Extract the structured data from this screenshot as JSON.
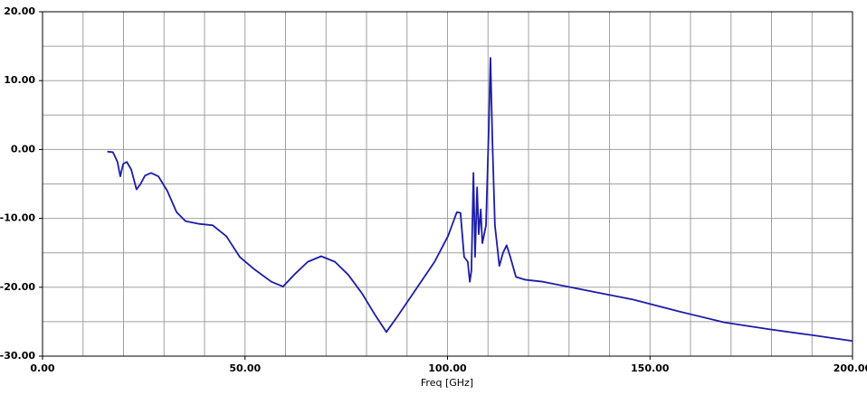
{
  "chart_data": {
    "type": "line",
    "x_label": "Freq [GHz]",
    "xlim": [
      0,
      200
    ],
    "ylim": [
      -30,
      20
    ],
    "xticks": [
      {
        "value": 0,
        "label": "0.00"
      },
      {
        "value": 50,
        "label": "50.00"
      },
      {
        "value": 100,
        "label": "100.00"
      },
      {
        "value": 150,
        "label": "150.00"
      },
      {
        "value": 200,
        "label": "200.00"
      }
    ],
    "yticks": [
      {
        "value": -30,
        "label": "-30.00"
      },
      {
        "value": -20,
        "label": "-20.00"
      },
      {
        "value": -10,
        "label": "-10.00"
      },
      {
        "value": 0,
        "label": "0.00"
      },
      {
        "value": 10,
        "label": "10.00"
      },
      {
        "value": 20,
        "label": "20.00"
      }
    ],
    "x_minor_grid": [
      10,
      20,
      30,
      40,
      60,
      70,
      80,
      90,
      110,
      120,
      130,
      140,
      160,
      170,
      180,
      190
    ],
    "y_minor_grid": [
      -25,
      -15,
      -5,
      5,
      15
    ],
    "grid": true,
    "series": [
      {
        "color": "#1c1ca8",
        "x": [
          16,
          17.4,
          18.5,
          19.2,
          19.9,
          20.8,
          21.9,
          23.2,
          24.1,
          25.3,
          26.8,
          28.6,
          30.8,
          33.1,
          35.3,
          38.7,
          42,
          45.4,
          48.7,
          52.1,
          56.5,
          59.4,
          62.1,
          65.5,
          68.8,
          72.2,
          75.5,
          78.9,
          82.2,
          84.9,
          87.8,
          92.3,
          96.8,
          100.1,
          102.3,
          103.2,
          104.1,
          105,
          105.5,
          105.9,
          106.4,
          106.8,
          107.3,
          107.7,
          108.2,
          108.6,
          109.5,
          110.2,
          110.6,
          111.1,
          111.7,
          112.8,
          113.7,
          114.6,
          115.5,
          116.9,
          119.1,
          123.6,
          134.7,
          145.9,
          157.1,
          168.3,
          179.4,
          190.6,
          200
        ],
        "values": [
          -0.3,
          -0.4,
          -1.8,
          -3.9,
          -2.1,
          -1.8,
          -2.9,
          -5.8,
          -5.1,
          -3.8,
          -3.4,
          -3.9,
          -6,
          -9.1,
          -10.4,
          -10.8,
          -11,
          -12.6,
          -15.6,
          -17.3,
          -19.2,
          -19.9,
          -18.2,
          -16.3,
          -15.5,
          -16.3,
          -18.2,
          -20.9,
          -24.1,
          -26.5,
          -24.1,
          -20.2,
          -16.3,
          -12.6,
          -9.1,
          -9.2,
          -15.6,
          -16.3,
          -19.2,
          -17.6,
          -3.4,
          -15.6,
          -5.5,
          -12.3,
          -8.7,
          -13.6,
          -11,
          3.4,
          13.3,
          0.8,
          -11,
          -16.9,
          -15,
          -13.9,
          -15.6,
          -18.5,
          -18.9,
          -19.2,
          -20.5,
          -21.8,
          -23.5,
          -25.1,
          -26.1,
          -27,
          -27.8
        ]
      }
    ]
  }
}
